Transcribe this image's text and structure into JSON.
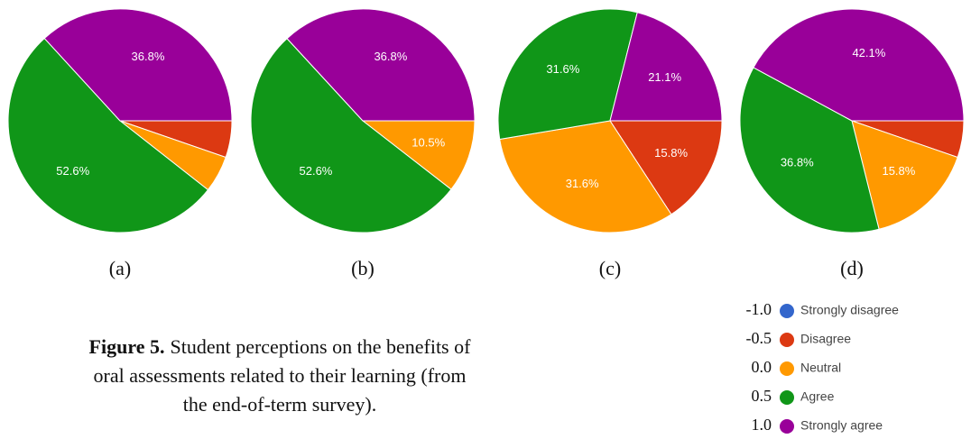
{
  "chart_data": [
    {
      "type": "pie",
      "caption": "(a)",
      "values": [
        0,
        5.3,
        5.3,
        52.6,
        36.8
      ],
      "value_labels": [
        null,
        null,
        null,
        "52.6%",
        "36.8%"
      ]
    },
    {
      "type": "pie",
      "caption": "(b)",
      "values": [
        0,
        0,
        10.5,
        52.6,
        36.8
      ],
      "value_labels": [
        null,
        null,
        "10.5%",
        "52.6%",
        "36.8%"
      ]
    },
    {
      "type": "pie",
      "caption": "(c)",
      "values": [
        0,
        15.8,
        31.6,
        31.6,
        21.1
      ],
      "value_labels": [
        null,
        "15.8%",
        "31.6%",
        "31.6%",
        "21.1%"
      ]
    },
    {
      "type": "pie",
      "caption": "(d)",
      "values": [
        0,
        5.3,
        15.8,
        36.8,
        42.1
      ],
      "value_labels": [
        null,
        null,
        "15.8%",
        "36.8%",
        "42.1%"
      ]
    }
  ],
  "legend": {
    "categories": [
      "Strongly disagree",
      "Disagree",
      "Neutral",
      "Agree",
      "Strongly agree"
    ],
    "scores": [
      "-1.0",
      "-0.5",
      "0.0",
      "0.5",
      "1.0"
    ],
    "colors": [
      "#3366cc",
      "#dc3912",
      "#ff9900",
      "#109618",
      "#990099"
    ]
  },
  "figure": {
    "label": "Figure 5.",
    "caption_lines": [
      "Student perceptions on the benefits of",
      "oral assessments related to their learning (from",
      "the end-of-term survey)."
    ]
  }
}
